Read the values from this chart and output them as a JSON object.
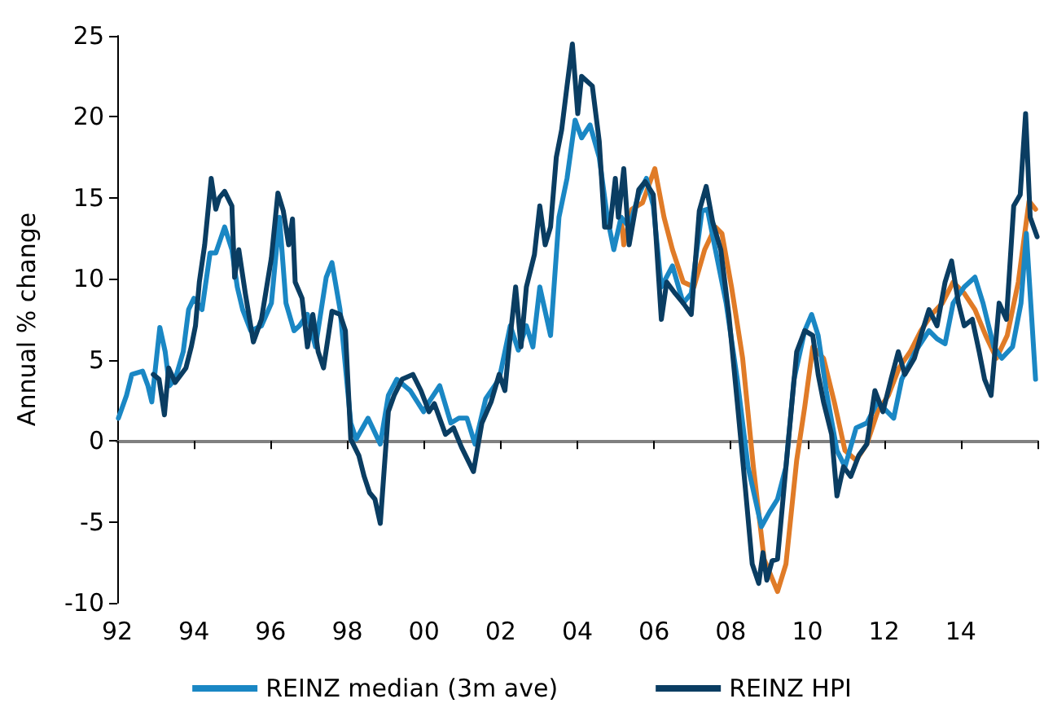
{
  "chart_data": {
    "type": "line",
    "ylabel": "Annual % change",
    "xlim": [
      1992,
      2016
    ],
    "ylim": [
      -10,
      25
    ],
    "yticks": [
      -10,
      -5,
      0,
      5,
      10,
      15,
      20,
      25
    ],
    "xticks": [
      {
        "value": 1992,
        "label": "92"
      },
      {
        "value": 1994,
        "label": "94"
      },
      {
        "value": 1996,
        "label": "96"
      },
      {
        "value": 1998,
        "label": "98"
      },
      {
        "value": 2000,
        "label": "00"
      },
      {
        "value": 2002,
        "label": "02"
      },
      {
        "value": 2004,
        "label": "04"
      },
      {
        "value": 2006,
        "label": "06"
      },
      {
        "value": 2008,
        "label": "08"
      },
      {
        "value": 2010,
        "label": "10"
      },
      {
        "value": 2012,
        "label": "12"
      },
      {
        "value": 2014,
        "label": "14"
      },
      {
        "value": 2016,
        "label": null
      }
    ],
    "legend": "bottom",
    "marker": "none",
    "line_style": "solid",
    "series": [
      {
        "color": "#e07b27",
        "x": [
          2005.14,
          2005.21,
          2005.42,
          2005.7,
          2006.02,
          2006.26,
          2006.48,
          2006.76,
          2007.04,
          2007.32,
          2007.6,
          2007.77,
          2008.02,
          2008.31,
          2008.59,
          2008.87,
          2009.22,
          2009.44,
          2009.72,
          2009.93,
          2010.14,
          2010.42,
          2010.7,
          2010.98,
          2011.27,
          2011.55,
          2011.83,
          2012.11,
          2012.39,
          2012.68,
          2012.96,
          2013.24,
          2013.52,
          2013.8,
          2014.09,
          2014.37,
          2014.65,
          2014.93,
          2015.21,
          2015.5,
          2015.78,
          2015.95
        ],
        "values": [
          13.8,
          12.1,
          14.3,
          14.7,
          16.8,
          13.8,
          11.8,
          9.8,
          9.5,
          11.8,
          13.2,
          12.8,
          9.5,
          5.1,
          -1.6,
          -7.3,
          -9.3,
          -7.6,
          -1.2,
          2.1,
          5.8,
          5.1,
          2.4,
          -0.6,
          -1.2,
          -0.2,
          1.8,
          2.8,
          4.5,
          5.5,
          6.8,
          7.8,
          8.5,
          9.8,
          9.1,
          8.1,
          6.5,
          5.1,
          6.5,
          9.8,
          14.8,
          14.3
        ]
      },
      {
        "name": "REINZ median (3m ave)",
        "color": "#1a87c4",
        "x": [
          1992.03,
          1992.24,
          1992.38,
          1992.66,
          1992.8,
          1992.9,
          1993.11,
          1993.25,
          1993.36,
          1993.51,
          1993.72,
          1993.86,
          1994.0,
          1994.21,
          1994.42,
          1994.57,
          1994.8,
          1994.99,
          1995.13,
          1995.27,
          1995.48,
          1995.76,
          1996.02,
          1996.23,
          1996.4,
          1996.61,
          1996.75,
          1996.96,
          1997.17,
          1997.45,
          1997.6,
          1997.81,
          1998.09,
          1998.23,
          1998.54,
          1998.86,
          1999.07,
          1999.29,
          1999.64,
          1999.99,
          2000.13,
          2000.41,
          2000.7,
          2000.91,
          2001.12,
          2001.33,
          2001.61,
          2001.96,
          2002.25,
          2002.46,
          2002.67,
          2002.84,
          2003.02,
          2003.3,
          2003.52,
          2003.73,
          2003.94,
          2004.11,
          2004.33,
          2004.57,
          2004.78,
          2004.95,
          2005.14,
          2005.35,
          2005.6,
          2005.8,
          2005.98,
          2006.19,
          2006.48,
          2006.76,
          2006.97,
          2007.25,
          2007.39,
          2007.6,
          2007.88,
          2008.17,
          2008.45,
          2008.8,
          2009.01,
          2009.22,
          2009.44,
          2009.65,
          2009.93,
          2010.11,
          2010.28,
          2010.49,
          2010.77,
          2010.98,
          2011.27,
          2011.55,
          2011.83,
          2012.25,
          2012.46,
          2012.81,
          2013.17,
          2013.38,
          2013.59,
          2013.8,
          2014.09,
          2014.37,
          2014.58,
          2014.86,
          2015.07,
          2015.35,
          2015.57,
          2015.71,
          2015.95
        ],
        "values": [
          1.4,
          2.8,
          4.1,
          4.3,
          3.4,
          2.4,
          7.0,
          5.5,
          3.4,
          3.8,
          5.5,
          8.1,
          8.8,
          8.1,
          11.6,
          11.6,
          13.2,
          11.8,
          9.5,
          8.1,
          6.8,
          7.1,
          8.5,
          13.8,
          8.5,
          6.8,
          7.1,
          7.8,
          5.8,
          10.1,
          11.0,
          8.1,
          1.1,
          0.1,
          1.4,
          -0.2,
          2.8,
          3.8,
          3.1,
          1.8,
          2.4,
          3.4,
          1.1,
          1.4,
          1.4,
          -0.2,
          2.6,
          3.8,
          7.1,
          5.6,
          7.1,
          5.8,
          9.5,
          6.5,
          13.8,
          16.2,
          19.8,
          18.7,
          19.5,
          17.5,
          13.8,
          11.8,
          13.8,
          13.2,
          15.2,
          16.2,
          14.5,
          9.5,
          10.8,
          8.5,
          9.1,
          14.2,
          14.3,
          11.8,
          8.5,
          3.8,
          -1.6,
          -5.3,
          -4.4,
          -3.6,
          -1.6,
          3.8,
          6.8,
          7.8,
          6.5,
          3.1,
          -0.6,
          -1.6,
          0.8,
          1.1,
          2.4,
          1.4,
          3.8,
          5.5,
          6.8,
          6.3,
          6.0,
          8.5,
          9.5,
          10.1,
          8.5,
          5.8,
          5.1,
          5.8,
          8.5,
          12.8,
          3.8
        ]
      },
      {
        "name": "REINZ HPI",
        "color": "#0a3d62",
        "x": [
          1992.94,
          1993.09,
          1993.23,
          1993.34,
          1993.51,
          1993.79,
          1993.93,
          1994.04,
          1994.14,
          1994.28,
          1994.45,
          1994.57,
          1994.66,
          1994.8,
          1994.99,
          1995.06,
          1995.17,
          1995.34,
          1995.55,
          1995.76,
          1996.02,
          1996.19,
          1996.33,
          1996.47,
          1996.57,
          1996.64,
          1996.82,
          1996.96,
          1997.1,
          1997.24,
          1997.38,
          1997.6,
          1997.81,
          1997.95,
          1998.09,
          1998.3,
          1998.44,
          1998.58,
          1998.72,
          1998.86,
          1999.07,
          1999.22,
          1999.43,
          1999.71,
          1999.92,
          2000.13,
          2000.27,
          2000.56,
          2000.77,
          2000.98,
          2001.29,
          2001.51,
          2001.75,
          2001.96,
          2002.11,
          2002.22,
          2002.39,
          2002.53,
          2002.67,
          2002.88,
          2003.02,
          2003.16,
          2003.3,
          2003.45,
          2003.59,
          2003.73,
          2003.87,
          2004.01,
          2004.11,
          2004.39,
          2004.57,
          2004.71,
          2004.85,
          2004.99,
          2005.07,
          2005.21,
          2005.35,
          2005.6,
          2005.77,
          2005.98,
          2006.19,
          2006.33,
          2006.55,
          2006.76,
          2006.97,
          2007.18,
          2007.36,
          2007.53,
          2007.74,
          2007.95,
          2008.17,
          2008.38,
          2008.56,
          2008.73,
          2008.84,
          2008.94,
          2009.08,
          2009.22,
          2009.44,
          2009.72,
          2009.93,
          2010.14,
          2010.28,
          2010.42,
          2010.63,
          2010.77,
          2010.94,
          2011.13,
          2011.34,
          2011.55,
          2011.76,
          2011.97,
          2012.18,
          2012.37,
          2012.54,
          2012.79,
          2012.96,
          2013.17,
          2013.38,
          2013.59,
          2013.76,
          2013.94,
          2014.09,
          2014.3,
          2014.48,
          2014.62,
          2014.79,
          2015.0,
          2015.19,
          2015.38,
          2015.55,
          2015.69,
          2015.81,
          2015.99
        ],
        "values": [
          4.1,
          3.8,
          1.6,
          4.5,
          3.6,
          4.5,
          5.8,
          7.1,
          9.8,
          12.1,
          16.2,
          14.3,
          15.0,
          15.4,
          14.5,
          10.1,
          11.8,
          9.1,
          6.1,
          7.5,
          11.3,
          15.3,
          14.2,
          12.1,
          13.7,
          9.8,
          8.8,
          5.8,
          7.8,
          5.5,
          4.5,
          8.0,
          7.8,
          6.8,
          0.1,
          -0.9,
          -2.2,
          -3.2,
          -3.6,
          -5.1,
          1.8,
          2.8,
          3.8,
          4.1,
          3.1,
          1.8,
          2.3,
          0.4,
          0.8,
          -0.4,
          -1.9,
          1.1,
          2.4,
          4.1,
          3.1,
          5.8,
          9.5,
          5.8,
          9.5,
          11.5,
          14.5,
          12.1,
          13.2,
          17.5,
          19.2,
          21.9,
          24.5,
          20.2,
          22.5,
          21.9,
          18.5,
          13.2,
          13.2,
          16.2,
          13.8,
          16.8,
          12.1,
          15.5,
          16.0,
          15.2,
          7.5,
          9.8,
          9.1,
          8.5,
          7.8,
          14.2,
          15.7,
          13.5,
          11.8,
          7.8,
          2.4,
          -2.9,
          -7.6,
          -8.8,
          -6.9,
          -8.6,
          -7.4,
          -7.3,
          -1.6,
          5.5,
          6.8,
          6.5,
          4.1,
          2.4,
          0.4,
          -3.4,
          -1.6,
          -2.2,
          -0.9,
          -0.2,
          3.1,
          1.8,
          3.8,
          5.5,
          4.1,
          5.1,
          6.5,
          8.1,
          7.1,
          9.8,
          11.1,
          8.5,
          7.1,
          7.5,
          5.5,
          3.8,
          2.8,
          8.5,
          7.5,
          14.5,
          15.2,
          20.2,
          13.8,
          12.6
        ]
      }
    ]
  }
}
